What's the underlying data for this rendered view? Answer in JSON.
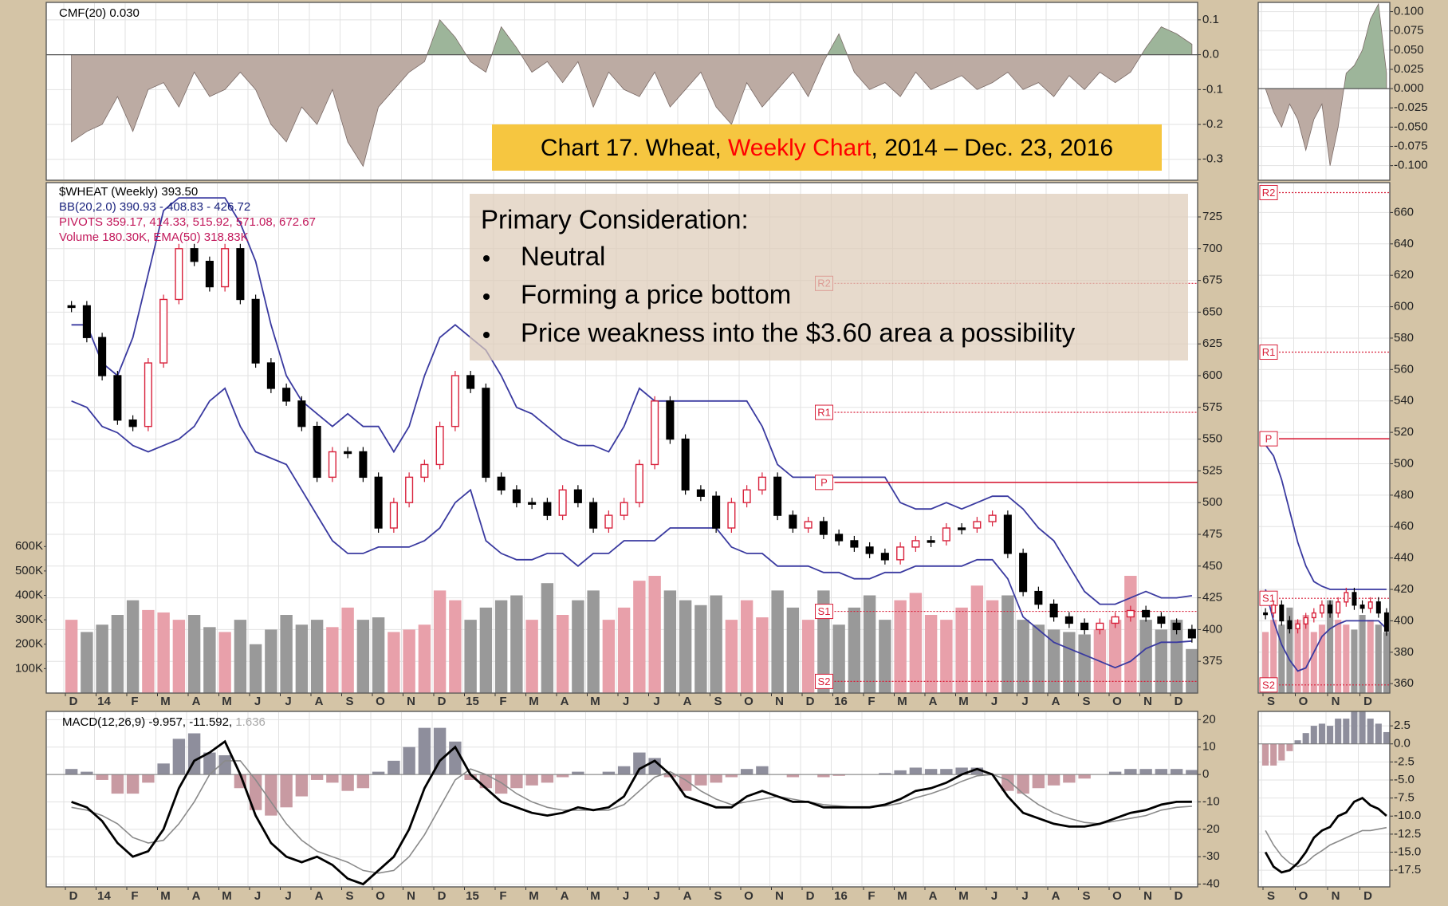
{
  "title": {
    "parts": [
      {
        "text": "Chart 17. Wheat, ",
        "color": "#000000"
      },
      {
        "text": "Weekly Chart",
        "color": "#ff0000"
      },
      {
        "text": ", 2014 – Dec. 23, 2016",
        "color": "#000000"
      }
    ]
  },
  "annotation": {
    "heading": "Primary Consideration:",
    "bullets": [
      "Neutral",
      "Forming a price bottom",
      "Price weakness into the $3.60 area a possibility"
    ]
  },
  "chart_data": [
    {
      "type": "area",
      "legend": [
        {
          "text": "CMF(20) 0.030",
          "color": "#000000"
        }
      ],
      "values": [
        -0.25,
        -0.22,
        -0.2,
        -0.12,
        -0.22,
        -0.1,
        -0.08,
        -0.15,
        -0.05,
        -0.12,
        -0.1,
        -0.05,
        -0.1,
        -0.2,
        -0.25,
        -0.15,
        -0.2,
        -0.1,
        -0.25,
        -0.32,
        -0.15,
        -0.1,
        -0.05,
        -0.02,
        0.1,
        0.05,
        -0.02,
        -0.05,
        0.08,
        0.02,
        -0.05,
        -0.02,
        -0.08,
        -0.02,
        -0.15,
        -0.05,
        -0.1,
        -0.12,
        -0.05,
        -0.15,
        -0.1,
        -0.05,
        -0.15,
        -0.2,
        -0.08,
        -0.15,
        -0.1,
        -0.05,
        -0.12,
        -0.02,
        0.06,
        -0.05,
        -0.1,
        -0.08,
        -0.12,
        -0.05,
        -0.1,
        -0.08,
        -0.06,
        -0.1,
        -0.08,
        -0.05,
        -0.1,
        -0.08,
        -0.12,
        -0.06,
        -0.1,
        -0.05,
        -0.08,
        -0.05,
        0.02,
        0.08,
        0.06,
        0.03
      ],
      "ylim": [
        -0.36,
        0.15
      ],
      "yticks": [
        0.1,
        {
          "value": 0,
          "label": "0.0"
        },
        -0.1,
        -0.2,
        -0.3
      ],
      "colors": {
        "positive": "#9db59a",
        "negative": "#bcaba3",
        "line": "#7a6a66"
      }
    },
    {
      "type": "candlestick",
      "legend": [
        {
          "text": "$WHEAT (Weekly) 393.50",
          "color": "#000000"
        },
        {
          "text": "BB(20,2.0) 390.93 - 408.83 - 426.72",
          "color": "#1a237e"
        },
        {
          "text": "PIVOTS 359.17, 414.33, 515.92, 571.08, 672.67",
          "color": "#c2185b"
        },
        {
          "text": "Volume 180.30K, EMA(50) 318.83K",
          "color": "#c2185b"
        }
      ],
      "categories": [
        "D",
        "14",
        "F",
        "M",
        "A",
        "M",
        "J",
        "J",
        "A",
        "S",
        "O",
        "N",
        "D",
        "15",
        "F",
        "M",
        "A",
        "M",
        "J",
        "J",
        "A",
        "S",
        "O",
        "N",
        "D",
        "16",
        "F",
        "M",
        "A",
        "M",
        "J",
        "J",
        "A",
        "S",
        "O",
        "N",
        "D"
      ],
      "close": [
        655,
        630,
        600,
        565,
        560,
        610,
        660,
        700,
        690,
        670,
        700,
        660,
        610,
        590,
        580,
        560,
        520,
        540,
        540,
        520,
        480,
        500,
        520,
        530,
        560,
        600,
        590,
        520,
        510,
        500,
        500,
        490,
        510,
        500,
        480,
        490,
        500,
        530,
        580,
        550,
        510,
        505,
        480,
        500,
        510,
        520,
        490,
        480,
        485,
        475,
        470,
        465,
        460,
        455,
        465,
        470,
        470,
        480,
        480,
        485,
        490,
        460,
        430,
        420,
        410,
        405,
        400,
        405,
        410,
        415,
        410,
        405,
        400,
        393.5
      ],
      "bb_upper": [
        640,
        640,
        610,
        600,
        630,
        680,
        730,
        740,
        740,
        740,
        740,
        720,
        690,
        640,
        600,
        580,
        570,
        560,
        570,
        560,
        560,
        540,
        560,
        600,
        630,
        640,
        630,
        620,
        600,
        575,
        570,
        560,
        550,
        545,
        545,
        540,
        560,
        590,
        580,
        580,
        580,
        580,
        580,
        580,
        580,
        560,
        530,
        520,
        520,
        520,
        520,
        520,
        520,
        520,
        500,
        495,
        495,
        500,
        495,
        500,
        505,
        505,
        495,
        480,
        470,
        450,
        430,
        420,
        420,
        425,
        430,
        425,
        425,
        426.72
      ],
      "bb_lower": [
        580,
        575,
        560,
        555,
        545,
        540,
        545,
        550,
        560,
        580,
        590,
        560,
        540,
        535,
        530,
        510,
        490,
        470,
        460,
        460,
        465,
        465,
        465,
        470,
        480,
        500,
        510,
        470,
        460,
        455,
        455,
        460,
        460,
        450,
        460,
        460,
        470,
        470,
        470,
        480,
        480,
        480,
        480,
        465,
        460,
        460,
        450,
        450,
        450,
        445,
        445,
        440,
        440,
        445,
        445,
        450,
        450,
        450,
        450,
        455,
        455,
        440,
        410,
        400,
        390,
        385,
        380,
        375,
        370,
        375,
        385,
        390,
        390,
        390.93
      ],
      "volume": [
        300,
        250,
        280,
        320,
        380,
        340,
        330,
        300,
        320,
        270,
        250,
        300,
        200,
        260,
        320,
        280,
        300,
        270,
        350,
        300,
        310,
        250,
        260,
        280,
        420,
        380,
        300,
        350,
        380,
        400,
        300,
        450,
        320,
        380,
        420,
        300,
        350,
        460,
        480,
        420,
        380,
        360,
        400,
        300,
        380,
        310,
        420,
        350,
        300,
        420,
        280,
        350,
        400,
        300,
        380,
        410,
        320,
        300,
        350,
        440,
        380,
        400,
        300,
        280,
        260,
        250,
        240,
        260,
        300,
        480,
        300,
        260,
        300,
        180.3
      ],
      "pivots": [
        {
          "label": "R2",
          "value": 672.67
        },
        {
          "label": "R1",
          "value": 571.08
        },
        {
          "label": "P",
          "value": 515.92
        },
        {
          "label": "S1",
          "value": 414.33
        },
        {
          "label": "S2",
          "value": 359.17
        }
      ],
      "ylim": [
        350,
        752
      ],
      "yticks": [
        375,
        400,
        425,
        450,
        475,
        500,
        525,
        550,
        575,
        600,
        625,
        650,
        675,
        700,
        725
      ],
      "volume_ylim": [
        0,
        2090
      ],
      "volume_yticks": [
        {
          "value": 100,
          "label": "100K"
        },
        {
          "value": 200,
          "label": "200K"
        },
        {
          "value": 300,
          "label": "300K"
        },
        {
          "value": 400,
          "label": "400K"
        },
        {
          "value": 500,
          "label": "500K"
        },
        {
          "value": 600,
          "label": "600K"
        }
      ],
      "colors": {
        "up": "#d8203a",
        "down": "#000000",
        "band": "#3a3aa0",
        "pivot": "#d8203a",
        "volume_up": "#e8a0aa",
        "volume_down": "#999999"
      }
    },
    {
      "type": "macd",
      "legend": [
        {
          "text": "MACD(12,26,9) -9.957, -11.592, ",
          "color": "#000000"
        },
        {
          "text": "1.636",
          "color": "#aaaaaa"
        }
      ],
      "categories": [
        "D",
        "14",
        "F",
        "M",
        "A",
        "M",
        "J",
        "J",
        "A",
        "S",
        "O",
        "N",
        "D",
        "15",
        "F",
        "M",
        "A",
        "M",
        "J",
        "J",
        "A",
        "S",
        "O",
        "N",
        "D",
        "16",
        "F",
        "M",
        "A",
        "M",
        "J",
        "J",
        "A",
        "S",
        "O",
        "N",
        "D"
      ],
      "macd": [
        -10,
        -12,
        -17,
        -25,
        -30,
        -28,
        -20,
        -5,
        5,
        8,
        12,
        0,
        -15,
        -25,
        -30,
        -32,
        -30,
        -33,
        -38,
        -40,
        -35,
        -30,
        -20,
        -5,
        5,
        10,
        0,
        -5,
        -10,
        -12,
        -14,
        -15,
        -14,
        -12,
        -13,
        -12,
        -8,
        2,
        5,
        0,
        -8,
        -10,
        -12,
        -12,
        -8,
        -6,
        -8,
        -10,
        -10,
        -12,
        -12,
        -12,
        -12,
        -11,
        -9,
        -6,
        -5,
        -3,
        0,
        2,
        0,
        -8,
        -14,
        -16,
        -18,
        -19,
        -19,
        -18,
        -16,
        -14,
        -13,
        -11,
        -10,
        -9.957
      ],
      "signal": [
        -12,
        -13,
        -15,
        -18,
        -23,
        -25,
        -24,
        -18,
        -10,
        0,
        5,
        5,
        -2,
        -10,
        -18,
        -24,
        -28,
        -30,
        -32,
        -35,
        -36,
        -35,
        -30,
        -22,
        -12,
        -2,
        2,
        0,
        -3,
        -7,
        -10,
        -12,
        -13,
        -13,
        -13,
        -13,
        -11,
        -6,
        -1,
        1,
        -2,
        -6,
        -9,
        -11,
        -10,
        -9,
        -8,
        -9,
        -10,
        -11,
        -11.5,
        -12,
        -12,
        -11.5,
        -10.5,
        -8.5,
        -7,
        -5,
        -2.5,
        -0.5,
        0,
        -2,
        -7,
        -11,
        -14,
        -16,
        -17.5,
        -18,
        -17,
        -16,
        -15,
        -13,
        -12,
        -11.592
      ],
      "ylim": [
        -41,
        23
      ],
      "yticks": [
        -40,
        -30,
        -20,
        -10,
        0,
        10,
        20
      ],
      "colors": {
        "macd": "#000000",
        "signal": "#8a8a8a",
        "hist_up": "#8e8e9c",
        "hist_down": "#c89aa2"
      }
    },
    {
      "type": "area",
      "values": [
        0,
        -0.03,
        -0.05,
        -0.02,
        -0.04,
        -0.08,
        -0.04,
        -0.02,
        -0.1,
        -0.05,
        0.02,
        0.03,
        0.05,
        0.09,
        0.11,
        0.02
      ],
      "ylim": [
        -0.119,
        0.112
      ],
      "yticks": [
        {
          "value": 0.1,
          "label": "0.100"
        },
        {
          "value": 0.075,
          "label": "0.075"
        },
        {
          "value": 0.05,
          "label": "0.050"
        },
        {
          "value": 0.025,
          "label": "0.025"
        },
        {
          "value": 0,
          "label": "0.000"
        },
        {
          "value": -0.025,
          "label": "-0.025"
        },
        {
          "value": -0.05,
          "label": "-0.050"
        },
        {
          "value": -0.075,
          "label": "-0.075"
        },
        {
          "value": -0.1,
          "label": "-0.100"
        }
      ],
      "colors": {
        "positive": "#9db59a",
        "negative": "#bcaba3",
        "line": "#7a6a66"
      }
    },
    {
      "type": "candlestick",
      "categories": [
        "S",
        "O",
        "N",
        "D"
      ],
      "close": [
        405,
        410,
        400,
        395,
        398,
        402,
        405,
        410,
        405,
        412,
        418,
        410,
        408,
        412,
        405,
        393.5
      ],
      "bb_upper": [
        512,
        505,
        490,
        470,
        450,
        435,
        425,
        422,
        420,
        420,
        420,
        420,
        420,
        420,
        420,
        420
      ],
      "bb_lower": [
        420,
        400,
        385,
        375,
        368,
        370,
        380,
        390,
        395,
        398,
        400,
        400,
        400,
        400,
        400,
        395
      ],
      "volume": [
        250,
        300,
        280,
        350,
        300,
        320,
        250,
        280,
        380,
        300,
        280,
        260,
        320,
        300,
        280,
        250
      ],
      "pivots": [
        {
          "label": "R2",
          "value": 672.67
        },
        {
          "label": "R1",
          "value": 571.08
        },
        {
          "label": "P",
          "value": 515.92
        },
        {
          "label": "S1",
          "value": 414.33
        },
        {
          "label": "S2",
          "value": 359.17
        }
      ],
      "ylim": [
        354,
        679
      ],
      "yticks": [
        360,
        380,
        400,
        420,
        440,
        460,
        480,
        500,
        520,
        540,
        560,
        580,
        600,
        620,
        640,
        660
      ],
      "volume_ylim": [
        0,
        2090
      ],
      "colors": {
        "up": "#d8203a",
        "down": "#000000",
        "band": "#3a3aa0",
        "pivot": "#d8203a",
        "volume_up": "#e8a0aa",
        "volume_down": "#999999"
      }
    },
    {
      "type": "macd",
      "categories": [
        "S",
        "O",
        "N",
        "D"
      ],
      "macd": [
        -15,
        -17,
        -17.8,
        -17.5,
        -16.5,
        -15,
        -13,
        -12,
        -11.5,
        -10,
        -9.5,
        -8,
        -7.5,
        -8.5,
        -9,
        -9.957
      ],
      "signal": [
        -12,
        -14,
        -15.5,
        -16.5,
        -17,
        -16.5,
        -15.5,
        -14.8,
        -14,
        -13.5,
        -13,
        -12.5,
        -12,
        -12,
        -11.8,
        -11.592
      ],
      "ylim": [
        -19.8,
        4.5
      ],
      "yticks": [
        2.5,
        {
          "value": 0,
          "label": "0.0"
        },
        -2.5,
        {
          "value": -5,
          "label": "-5.0"
        },
        -7.5,
        {
          "value": -10,
          "label": "-10.0"
        },
        -12.5,
        {
          "value": -15,
          "label": "-15.0"
        },
        -17.5
      ],
      "colors": {
        "macd": "#000000",
        "signal": "#8a8a8a",
        "hist_up": "#8e8e9c",
        "hist_down": "#c89aa2"
      }
    }
  ]
}
